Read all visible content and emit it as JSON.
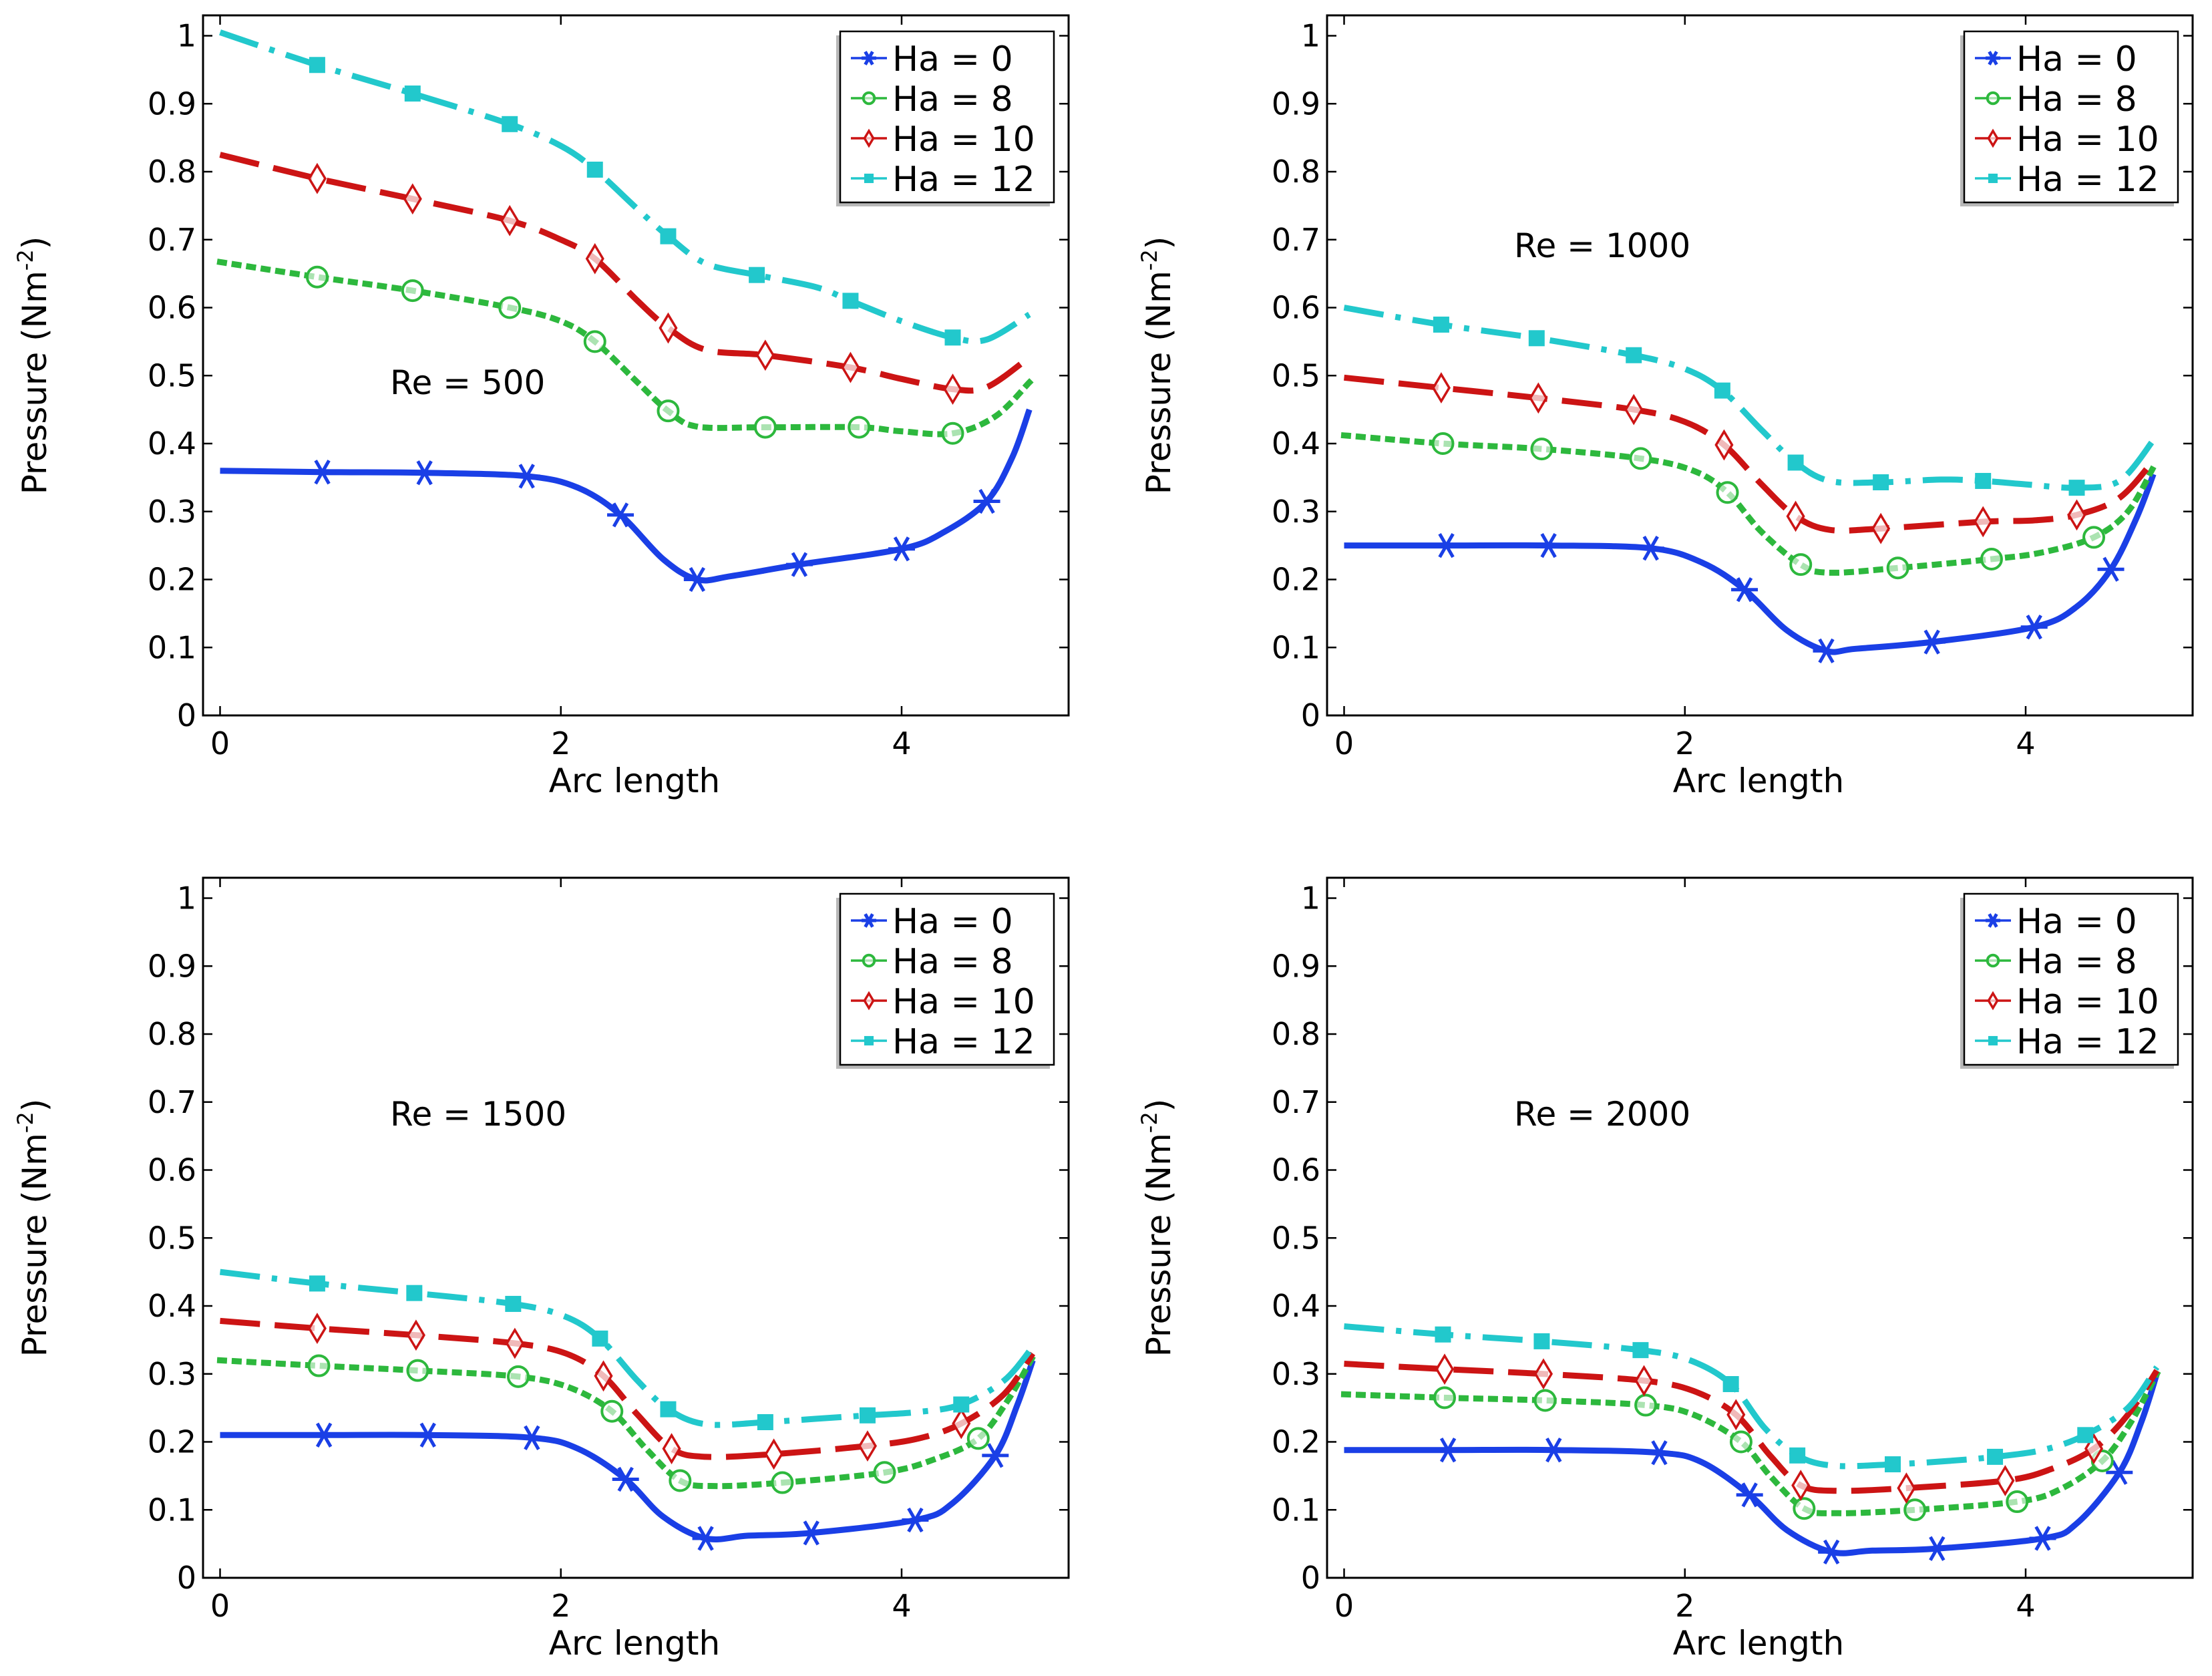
{
  "figure": {
    "description": "Pressure along arc length for several Hartmann numbers at four Reynolds numbers"
  },
  "chart_data": [
    {
      "type": "line",
      "annotation": "Re = 500",
      "xlabel": "Arc length",
      "ylabel": "Pressure (Nm",
      "ylabel_sup": "-2",
      "ylabel_close": ")",
      "xlim": [
        -0.1,
        4.98
      ],
      "ylim": [
        0,
        1.03
      ],
      "xticks": [
        0,
        2,
        4
      ],
      "yticks": [
        0,
        0.1,
        0.2,
        0.3,
        0.4,
        0.5,
        0.6,
        0.7,
        0.8,
        0.9,
        1
      ],
      "grid": false,
      "legend_position": "top-right",
      "series": [
        {
          "name": "Ha = 0",
          "color": "#1a3fe6",
          "style": "solid",
          "marker": "asterisk",
          "x": [
            0,
            0.6,
            1.2,
            1.8,
            2.1,
            2.35,
            2.6,
            2.8,
            3.0,
            3.4,
            4.0,
            4.25,
            4.5,
            4.65,
            4.75
          ],
          "y": [
            0.36,
            0.358,
            0.357,
            0.352,
            0.335,
            0.295,
            0.23,
            0.2,
            0.205,
            0.222,
            0.245,
            0.27,
            0.315,
            0.38,
            0.45
          ],
          "markers_x": [
            0.6,
            1.2,
            1.8,
            2.35,
            2.8,
            3.4,
            4.0,
            4.5
          ]
        },
        {
          "name": "Ha = 8",
          "color": "#2db83d",
          "style": "dotted",
          "marker": "circle",
          "x": [
            0,
            0.57,
            1.13,
            1.7,
            2.0,
            2.2,
            2.45,
            2.63,
            2.8,
            3.2,
            3.75,
            4.0,
            4.3,
            4.55,
            4.75
          ],
          "y": [
            0.667,
            0.645,
            0.625,
            0.6,
            0.58,
            0.55,
            0.49,
            0.448,
            0.425,
            0.424,
            0.424,
            0.418,
            0.415,
            0.44,
            0.49
          ],
          "markers_x": [
            0.57,
            1.13,
            1.7,
            2.2,
            2.63,
            3.2,
            3.75,
            4.3
          ]
        },
        {
          "name": "Ha = 10",
          "color": "#cc1414",
          "style": "dashed",
          "marker": "diamond",
          "x": [
            0,
            0.57,
            1.13,
            1.7,
            2.0,
            2.2,
            2.45,
            2.63,
            2.85,
            3.2,
            3.7,
            4.0,
            4.3,
            4.5,
            4.75
          ],
          "y": [
            0.825,
            0.79,
            0.76,
            0.728,
            0.7,
            0.672,
            0.61,
            0.57,
            0.538,
            0.53,
            0.512,
            0.495,
            0.48,
            0.483,
            0.527
          ],
          "markers_x": [
            0.57,
            1.13,
            1.7,
            2.2,
            2.63,
            3.2,
            3.7,
            4.3
          ]
        },
        {
          "name": "Ha = 12",
          "color": "#22c8cc",
          "style": "dashdot",
          "marker": "square",
          "x": [
            0,
            0.57,
            1.13,
            1.7,
            2.0,
            2.2,
            2.45,
            2.63,
            2.85,
            3.15,
            3.5,
            3.7,
            4.0,
            4.3,
            4.5,
            4.75
          ],
          "y": [
            1.005,
            0.957,
            0.915,
            0.87,
            0.838,
            0.803,
            0.745,
            0.705,
            0.665,
            0.648,
            0.63,
            0.61,
            0.58,
            0.556,
            0.553,
            0.59
          ],
          "markers_x": [
            0.57,
            1.13,
            1.7,
            2.2,
            2.63,
            3.15,
            3.7,
            4.3
          ]
        }
      ]
    },
    {
      "type": "line",
      "annotation": "Re = 1000",
      "xlabel": "Arc length",
      "ylabel": "Pressure (Nm",
      "ylabel_sup": "-2",
      "ylabel_close": ")",
      "xlim": [
        -0.1,
        4.98
      ],
      "ylim": [
        0,
        1.03
      ],
      "xticks": [
        0,
        2,
        4
      ],
      "yticks": [
        0,
        0.1,
        0.2,
        0.3,
        0.4,
        0.5,
        0.6,
        0.7,
        0.8,
        0.9,
        1
      ],
      "grid": false,
      "legend_position": "top-right",
      "series": [
        {
          "name": "Ha = 0",
          "color": "#1a3fe6",
          "style": "solid",
          "marker": "asterisk",
          "x": [
            0,
            0.6,
            1.2,
            1.8,
            2.1,
            2.35,
            2.6,
            2.83,
            3.0,
            3.45,
            4.05,
            4.3,
            4.5,
            4.65,
            4.75
          ],
          "y": [
            0.25,
            0.25,
            0.25,
            0.246,
            0.225,
            0.185,
            0.125,
            0.095,
            0.098,
            0.108,
            0.13,
            0.16,
            0.215,
            0.29,
            0.355
          ],
          "markers_x": [
            0.6,
            1.2,
            1.8,
            2.35,
            2.83,
            3.45,
            4.05,
            4.5
          ]
        },
        {
          "name": "Ha = 8",
          "color": "#2db83d",
          "style": "dotted",
          "marker": "circle",
          "x": [
            0,
            0.58,
            1.16,
            1.74,
            2.05,
            2.25,
            2.45,
            2.68,
            2.85,
            3.25,
            3.8,
            4.1,
            4.4,
            4.6,
            4.75
          ],
          "y": [
            0.412,
            0.4,
            0.392,
            0.378,
            0.36,
            0.328,
            0.27,
            0.222,
            0.21,
            0.217,
            0.23,
            0.24,
            0.262,
            0.3,
            0.365
          ],
          "markers_x": [
            0.58,
            1.16,
            1.74,
            2.25,
            2.68,
            3.25,
            3.8,
            4.4
          ]
        },
        {
          "name": "Ha = 10",
          "color": "#cc1414",
          "style": "dashed",
          "marker": "diamond",
          "x": [
            0,
            0.57,
            1.14,
            1.7,
            2.0,
            2.23,
            2.45,
            2.65,
            2.85,
            3.15,
            3.75,
            4.05,
            4.3,
            4.55,
            4.75
          ],
          "y": [
            0.497,
            0.482,
            0.467,
            0.45,
            0.432,
            0.398,
            0.34,
            0.293,
            0.273,
            0.275,
            0.285,
            0.287,
            0.295,
            0.32,
            0.375
          ],
          "markers_x": [
            0.57,
            1.14,
            1.7,
            2.23,
            2.65,
            3.15,
            3.75,
            4.3
          ]
        },
        {
          "name": "Ha = 12",
          "color": "#22c8cc",
          "style": "dashdot",
          "marker": "square",
          "x": [
            0,
            0.57,
            1.13,
            1.7,
            2.0,
            2.22,
            2.45,
            2.65,
            2.85,
            3.15,
            3.5,
            3.75,
            4.0,
            4.3,
            4.55,
            4.75
          ],
          "y": [
            0.6,
            0.575,
            0.555,
            0.53,
            0.51,
            0.478,
            0.42,
            0.372,
            0.345,
            0.343,
            0.347,
            0.345,
            0.34,
            0.335,
            0.345,
            0.405
          ],
          "markers_x": [
            0.57,
            1.13,
            1.7,
            2.22,
            2.65,
            3.15,
            3.75,
            4.3
          ]
        }
      ]
    },
    {
      "type": "line",
      "annotation": "Re = 1500",
      "xlabel": "Arc length",
      "ylabel": "Pressure (Nm",
      "ylabel_sup": "-2",
      "ylabel_close": ")",
      "xlim": [
        -0.1,
        4.98
      ],
      "ylim": [
        0,
        1.03
      ],
      "xticks": [
        0,
        2,
        4
      ],
      "yticks": [
        0,
        0.1,
        0.2,
        0.3,
        0.4,
        0.5,
        0.6,
        0.7,
        0.8,
        0.9,
        1
      ],
      "grid": false,
      "legend_position": "top-right",
      "series": [
        {
          "name": "Ha = 0",
          "color": "#1a3fe6",
          "style": "solid",
          "marker": "asterisk",
          "x": [
            0,
            0.61,
            1.22,
            1.83,
            2.1,
            2.38,
            2.6,
            2.85,
            3.1,
            3.47,
            4.08,
            4.3,
            4.55,
            4.68,
            4.77
          ],
          "y": [
            0.21,
            0.21,
            0.21,
            0.206,
            0.19,
            0.145,
            0.09,
            0.058,
            0.062,
            0.066,
            0.085,
            0.11,
            0.18,
            0.255,
            0.32
          ],
          "markers_x": [
            0.61,
            1.22,
            1.83,
            2.38,
            2.85,
            3.47,
            4.08,
            4.55
          ]
        },
        {
          "name": "Ha = 8",
          "color": "#2db83d",
          "style": "dotted",
          "marker": "circle",
          "x": [
            0,
            0.58,
            1.16,
            1.75,
            2.05,
            2.3,
            2.5,
            2.7,
            2.9,
            3.3,
            3.9,
            4.2,
            4.45,
            4.62,
            4.77
          ],
          "y": [
            0.32,
            0.312,
            0.305,
            0.296,
            0.28,
            0.245,
            0.19,
            0.143,
            0.135,
            0.14,
            0.155,
            0.175,
            0.205,
            0.26,
            0.325
          ],
          "markers_x": [
            0.58,
            1.16,
            1.75,
            2.3,
            2.7,
            3.3,
            3.9,
            4.45
          ]
        },
        {
          "name": "Ha = 10",
          "color": "#cc1414",
          "style": "dashed",
          "marker": "diamond",
          "x": [
            0,
            0.57,
            1.15,
            1.73,
            2.03,
            2.25,
            2.45,
            2.65,
            2.85,
            3.25,
            3.8,
            4.1,
            4.35,
            4.6,
            4.77
          ],
          "y": [
            0.378,
            0.367,
            0.357,
            0.345,
            0.33,
            0.297,
            0.24,
            0.19,
            0.178,
            0.182,
            0.194,
            0.205,
            0.227,
            0.27,
            0.33
          ],
          "markers_x": [
            0.57,
            1.15,
            1.73,
            2.25,
            2.65,
            3.25,
            3.8,
            4.35
          ]
        },
        {
          "name": "Ha = 12",
          "color": "#22c8cc",
          "style": "dashdot",
          "marker": "square",
          "x": [
            0,
            0.57,
            1.14,
            1.72,
            2.02,
            2.23,
            2.45,
            2.63,
            2.85,
            3.2,
            3.5,
            3.8,
            4.1,
            4.35,
            4.6,
            4.77
          ],
          "y": [
            0.45,
            0.433,
            0.419,
            0.403,
            0.385,
            0.352,
            0.29,
            0.248,
            0.226,
            0.229,
            0.234,
            0.239,
            0.244,
            0.255,
            0.29,
            0.34
          ],
          "markers_x": [
            0.57,
            1.14,
            1.72,
            2.23,
            2.63,
            3.2,
            3.8,
            4.35
          ]
        }
      ]
    },
    {
      "type": "line",
      "annotation": "Re = 2000",
      "xlabel": "Arc length",
      "ylabel": "Pressure (Nm",
      "ylabel_sup": "-2",
      "ylabel_close": ")",
      "xlim": [
        -0.1,
        4.98
      ],
      "ylim": [
        0,
        1.03
      ],
      "xticks": [
        0,
        2,
        4
      ],
      "yticks": [
        0,
        0.1,
        0.2,
        0.3,
        0.4,
        0.5,
        0.6,
        0.7,
        0.8,
        0.9,
        1
      ],
      "grid": false,
      "legend_position": "top-right",
      "series": [
        {
          "name": "Ha = 0",
          "color": "#1a3fe6",
          "style": "solid",
          "marker": "asterisk",
          "x": [
            0,
            0.61,
            1.23,
            1.85,
            2.1,
            2.38,
            2.6,
            2.86,
            3.1,
            3.48,
            4.1,
            4.3,
            4.55,
            4.68,
            4.77
          ],
          "y": [
            0.188,
            0.188,
            0.188,
            0.184,
            0.17,
            0.122,
            0.07,
            0.038,
            0.04,
            0.043,
            0.058,
            0.08,
            0.155,
            0.23,
            0.3
          ],
          "markers_x": [
            0.61,
            1.23,
            1.85,
            2.38,
            2.86,
            3.48,
            4.1,
            4.55
          ]
        },
        {
          "name": "Ha = 8",
          "color": "#2db83d",
          "style": "dotted",
          "marker": "circle",
          "x": [
            0,
            0.59,
            1.18,
            1.77,
            2.05,
            2.33,
            2.5,
            2.7,
            2.9,
            3.35,
            3.95,
            4.2,
            4.45,
            4.62,
            4.77
          ],
          "y": [
            0.27,
            0.265,
            0.261,
            0.254,
            0.24,
            0.2,
            0.15,
            0.102,
            0.095,
            0.1,
            0.112,
            0.13,
            0.172,
            0.23,
            0.3
          ],
          "markers_x": [
            0.59,
            1.18,
            1.77,
            2.33,
            2.7,
            3.35,
            3.95,
            4.45
          ]
        },
        {
          "name": "Ha = 10",
          "color": "#cc1414",
          "style": "dashed",
          "marker": "diamond",
          "x": [
            0,
            0.59,
            1.17,
            1.76,
            2.05,
            2.3,
            2.5,
            2.68,
            2.9,
            3.3,
            3.88,
            4.15,
            4.4,
            4.6,
            4.77
          ],
          "y": [
            0.315,
            0.307,
            0.3,
            0.29,
            0.275,
            0.24,
            0.18,
            0.136,
            0.128,
            0.132,
            0.143,
            0.16,
            0.19,
            0.24,
            0.305
          ],
          "markers_x": [
            0.59,
            1.17,
            1.76,
            2.3,
            2.68,
            3.3,
            3.88,
            4.4
          ]
        },
        {
          "name": "Ha = 12",
          "color": "#22c8cc",
          "style": "dashdot",
          "marker": "square",
          "x": [
            0,
            0.58,
            1.16,
            1.74,
            2.03,
            2.27,
            2.47,
            2.66,
            2.87,
            3.22,
            3.55,
            3.82,
            4.1,
            4.35,
            4.6,
            4.77
          ],
          "y": [
            0.37,
            0.358,
            0.348,
            0.335,
            0.32,
            0.285,
            0.22,
            0.18,
            0.165,
            0.167,
            0.172,
            0.178,
            0.188,
            0.21,
            0.25,
            0.31
          ],
          "markers_x": [
            0.58,
            1.16,
            1.74,
            2.27,
            2.66,
            3.22,
            3.82,
            4.35
          ]
        }
      ]
    }
  ]
}
